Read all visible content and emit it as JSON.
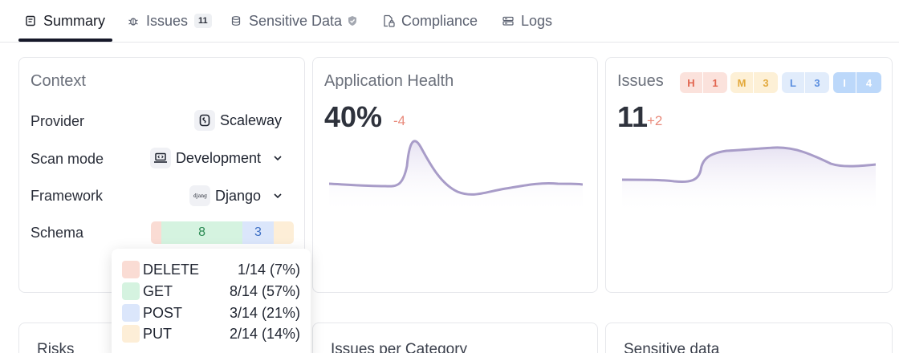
{
  "tabs": [
    {
      "label": "Summary",
      "icon": "document-icon",
      "active": true
    },
    {
      "label": "Issues",
      "icon": "bug-icon",
      "count": "11"
    },
    {
      "label": "Sensitive Data",
      "icon": "database-icon",
      "trail_icon": "shield-check-icon"
    },
    {
      "label": "Compliance",
      "icon": "file-lock-icon"
    },
    {
      "label": "Logs",
      "icon": "logs-icon"
    }
  ],
  "context": {
    "title": "Context",
    "provider": {
      "label": "Provider",
      "value": "Scaleway",
      "icon": "scaleway-logo"
    },
    "scan_mode": {
      "label": "Scan mode",
      "value": "Development",
      "icon": "laptop-code-icon"
    },
    "framework": {
      "label": "Framework",
      "value": "Django",
      "icon": "django-logo"
    },
    "schema": {
      "label": "Schema",
      "segments": [
        {
          "name": "DELETE",
          "value": 1,
          "label": ""
        },
        {
          "name": "GET",
          "value": 8,
          "label": "8"
        },
        {
          "name": "POST",
          "value": 3,
          "label": "3"
        },
        {
          "name": "PUT",
          "value": 2,
          "label": ""
        }
      ]
    }
  },
  "tooltip": {
    "rows": [
      {
        "name": "DELETE",
        "value": "1/14 (7%)",
        "color": "#fadcd4"
      },
      {
        "name": "GET",
        "value": "8/14 (57%)",
        "color": "#d5f3e0"
      },
      {
        "name": "POST",
        "value": "3/14 (21%)",
        "color": "#dbe6fb"
      },
      {
        "name": "PUT",
        "value": "2/14 (14%)",
        "color": "#fdeed7"
      }
    ]
  },
  "health": {
    "title": "Application Health",
    "value": "40%",
    "delta": "-4"
  },
  "issues": {
    "title": "Issues",
    "value": "11",
    "delta": "+2",
    "severity": [
      {
        "letter": "H",
        "count": "1",
        "bg": "#fbe2dc",
        "fg": "#e2654f"
      },
      {
        "letter": "M",
        "count": "3",
        "bg": "#fdf0d6",
        "fg": "#e3a93c"
      },
      {
        "letter": "L",
        "count": "3",
        "bg": "#e1ecfb",
        "fg": "#5b8fe0"
      },
      {
        "letter": "I",
        "count": "4",
        "bg": "#bcd8fa",
        "fg": "#ffffff"
      }
    ]
  },
  "bottom": {
    "risks": "Risks",
    "issues_per_category": "Issues per Category",
    "sensitive_data": "Sensitive data"
  },
  "colors": {
    "accent": "#151829",
    "spark_line": "#a89cc8",
    "delta": "#e98a7b"
  }
}
